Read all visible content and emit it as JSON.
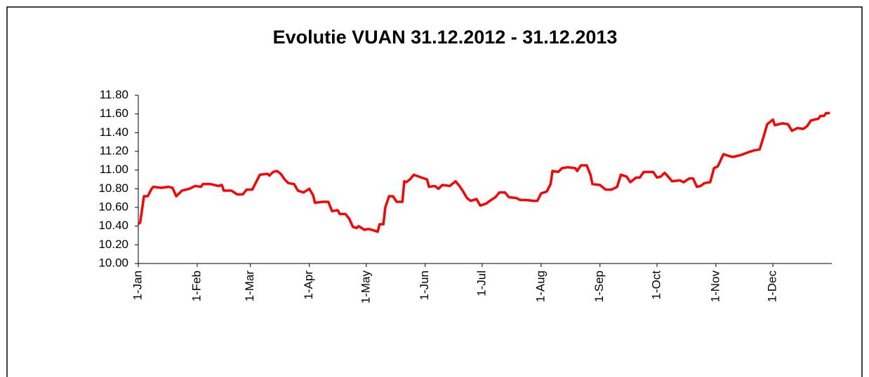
{
  "chart_data": {
    "type": "line",
    "title": "Evolutie VUAN 31.12.2012 - 31.12.2013",
    "x": [
      1,
      2,
      4,
      6,
      8,
      9,
      13,
      17,
      19,
      21,
      24,
      28,
      31,
      34,
      35,
      39,
      43,
      45,
      46,
      50,
      53,
      56,
      58,
      61,
      63,
      65,
      69,
      70,
      72,
      74,
      76,
      78,
      80,
      83,
      85,
      88,
      91,
      93,
      94,
      98,
      101,
      103,
      106,
      107,
      110,
      112,
      114,
      116,
      117,
      120,
      122,
      124,
      127,
      128,
      130,
      131,
      133,
      135,
      137,
      140,
      141,
      142,
      144,
      146,
      150,
      153,
      154,
      157,
      159,
      161,
      165,
      168,
      170,
      172,
      174,
      176,
      179,
      181,
      184,
      186,
      189,
      191,
      194,
      196,
      200,
      202,
      205,
      209,
      211,
      213,
      216,
      218,
      219,
      222,
      224,
      227,
      231,
      232,
      234,
      237,
      239,
      240,
      244,
      247,
      250,
      253,
      255,
      258,
      260,
      263,
      265,
      267,
      272,
      274,
      276,
      278,
      279,
      282,
      286,
      288,
      291,
      293,
      295,
      297,
      299,
      302,
      304,
      306,
      309,
      312,
      314,
      318,
      322,
      325,
      328,
      330,
      332,
      335,
      336,
      340,
      343,
      345,
      348,
      351,
      353,
      355,
      359,
      360,
      362,
      363,
      365
    ],
    "series": [
      {
        "name": "VUAN",
        "color": "#ff0000",
        "values": [
          10.42,
          10.44,
          10.72,
          10.72,
          10.8,
          10.82,
          10.81,
          10.82,
          10.81,
          10.72,
          10.78,
          10.8,
          10.83,
          10.82,
          10.85,
          10.85,
          10.83,
          10.84,
          10.78,
          10.78,
          10.74,
          10.74,
          10.79,
          10.79,
          10.87,
          10.95,
          10.96,
          10.94,
          10.98,
          10.99,
          10.96,
          10.9,
          10.86,
          10.85,
          10.78,
          10.76,
          10.8,
          10.73,
          10.65,
          10.66,
          10.66,
          10.56,
          10.57,
          10.53,
          10.53,
          10.48,
          10.39,
          10.38,
          10.4,
          10.36,
          10.37,
          10.36,
          10.34,
          10.42,
          10.42,
          10.6,
          10.72,
          10.72,
          10.66,
          10.66,
          10.88,
          10.87,
          10.9,
          10.95,
          10.92,
          10.9,
          10.82,
          10.83,
          10.8,
          10.84,
          10.83,
          10.88,
          10.83,
          10.77,
          10.7,
          10.67,
          10.69,
          10.62,
          10.64,
          10.67,
          10.71,
          10.76,
          10.76,
          10.71,
          10.7,
          10.68,
          10.68,
          10.67,
          10.67,
          10.75,
          10.77,
          10.85,
          10.99,
          10.98,
          11.02,
          11.03,
          11.02,
          10.99,
          11.05,
          11.05,
          10.95,
          10.85,
          10.84,
          10.79,
          10.79,
          10.82,
          10.95,
          10.93,
          10.87,
          10.92,
          10.92,
          10.98,
          10.98,
          10.92,
          10.93,
          10.97,
          10.95,
          10.88,
          10.89,
          10.87,
          10.91,
          10.91,
          10.82,
          10.83,
          10.86,
          10.87,
          11.02,
          11.04,
          11.17,
          11.15,
          11.14,
          11.16,
          11.19,
          11.21,
          11.22,
          11.35,
          11.49,
          11.54,
          11.48,
          11.5,
          11.49,
          11.42,
          11.45,
          11.44,
          11.47,
          11.53,
          11.55,
          11.58,
          11.58,
          11.61,
          11.61
        ]
      }
    ],
    "xlim": [
      1,
      366
    ],
    "xticks": [
      {
        "value": 1,
        "label": "1-Jan"
      },
      {
        "value": 32,
        "label": "1-Feb"
      },
      {
        "value": 60,
        "label": "1-Mar"
      },
      {
        "value": 91,
        "label": "1-Apr"
      },
      {
        "value": 121,
        "label": "1-May"
      },
      {
        "value": 152,
        "label": "1-Jun"
      },
      {
        "value": 182,
        "label": "1-Jul"
      },
      {
        "value": 213,
        "label": "1-Aug"
      },
      {
        "value": 244,
        "label": "1-Sep"
      },
      {
        "value": 274,
        "label": "1-Oct"
      },
      {
        "value": 305,
        "label": "1-Nov"
      },
      {
        "value": 335,
        "label": "1-Dec"
      }
    ],
    "ylim": [
      10,
      11.8
    ],
    "yticks": [
      {
        "value": 10,
        "label": "10.00"
      },
      {
        "value": 10.2,
        "label": "10.20"
      },
      {
        "value": 10.4,
        "label": "10.40"
      },
      {
        "value": 10.6,
        "label": "10.60"
      },
      {
        "value": 10.8,
        "label": "10.80"
      },
      {
        "value": 11,
        "label": "11.00"
      },
      {
        "value": 11.2,
        "label": "11.20"
      },
      {
        "value": 11.4,
        "label": "11.40"
      },
      {
        "value": 11.6,
        "label": "11.60"
      },
      {
        "value": 11.8,
        "label": "11.80"
      }
    ],
    "grid": false
  }
}
